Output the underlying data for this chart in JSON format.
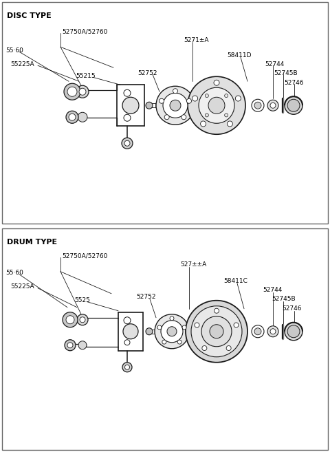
{
  "bg_color": "#ffffff",
  "lc": "#1a1a1a",
  "fig_width": 4.8,
  "fig_height": 6.57,
  "dpi": 100,
  "disc_label": "DISC TYPE",
  "drum_label": "DRUM TYPE",
  "disc_parts_labels": {
    "p52750": "52750A/52760",
    "p55160": "55·60",
    "p55225A": "55225A",
    "p55215": "55215",
    "p52752": "52752",
    "p52711A": "5271±A",
    "p58411D": "58411D",
    "p52744": "52744",
    "p52745B": "52745B",
    "p52746": "52746"
  },
  "drum_parts_labels": {
    "p52750": "52750A/52760",
    "p55160": "55·60",
    "p55225A": "55225A",
    "p55215": "5525",
    "p52752": "52752",
    "p52711A": "527±±A",
    "p58411C": "58411C",
    "p52744": "52744",
    "p52745B": "52745B",
    "p52746": "52746"
  }
}
